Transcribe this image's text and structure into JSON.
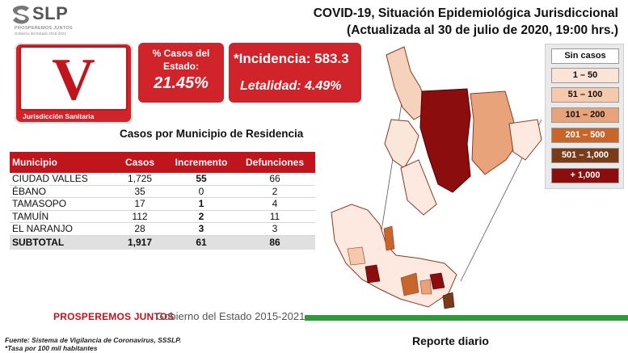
{
  "logo": {
    "name": "SLP",
    "tagline": "PROSPEREMOS JUNTOS",
    "sub": "Gobierno del Estado 2015-2021"
  },
  "header": {
    "line1": "COVID-19, Situación Epidemiológica Jurisdiccional",
    "line2": "(Actualizada al 30 de julio de 2020, 19:00 hrs.)"
  },
  "jurisdiction": {
    "letter": "V",
    "caption": "Jurisdicción Sanitaria"
  },
  "state_pct": {
    "label_line1": "% Casos del",
    "label_line2": "Estado:",
    "value": "21.45%"
  },
  "indicators": {
    "incidencia": "*Incidencia: 583.3",
    "letalidad": "Letalidad: 4.49%"
  },
  "table": {
    "title": "Casos por Municipio  de Residencia",
    "headers": [
      "Municipio",
      "Casos",
      "Incremento",
      "Defunciones"
    ],
    "rows": [
      {
        "municipio": "CIUDAD VALLES",
        "casos": "1,725",
        "incremento": "55",
        "defunciones": "66"
      },
      {
        "municipio": "ÉBANO",
        "casos": "35",
        "incremento": "0",
        "defunciones": "2"
      },
      {
        "municipio": "TAMASOPO",
        "casos": "17",
        "incremento": "1",
        "defunciones": "4"
      },
      {
        "municipio": "TAMUÍN",
        "casos": "112",
        "incremento": "2",
        "defunciones": "11"
      },
      {
        "municipio": "EL NARANJO",
        "casos": "28",
        "incremento": "3",
        "defunciones": "3"
      }
    ],
    "subtotal": {
      "municipio": "SUBTOTAL",
      "casos": "1,917",
      "incremento": "61",
      "defunciones": "86"
    }
  },
  "legend": {
    "items": [
      {
        "label": "Sin casos",
        "color": "#ffffff"
      },
      {
        "label": "1 – 50",
        "color": "#fbe3d5"
      },
      {
        "label": "51 – 100",
        "color": "#f6c9ad"
      },
      {
        "label": "101 – 200",
        "color": "#e9a37a"
      },
      {
        "label": "201 – 500",
        "color": "#c8652a"
      },
      {
        "label": "501 – 1,000",
        "color": "#7a3b19"
      },
      {
        "label": "+ 1,000",
        "color": "#8b0d0d"
      }
    ]
  },
  "footer": {
    "prosperemos": "PROSPEREMOS JUNTOS",
    "gobierno": "Gobierno del Estado 2015-2021",
    "source": "Fuente: Sistema de Vigilancia de Coronavirus, SSSLP.",
    "tasa": "*Tasa por 100 mil habitantes",
    "reporte": "Reporte diario"
  },
  "colors": {
    "brand_red": "#c0151c",
    "accent_green": "#2e9b3a"
  }
}
